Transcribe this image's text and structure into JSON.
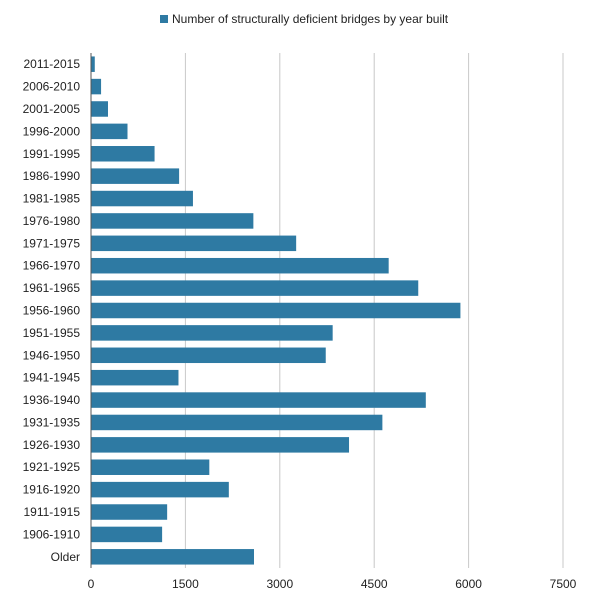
{
  "chart_data": {
    "type": "bar",
    "orientation": "horizontal",
    "categories": [
      "2011-2015",
      "2006-2010",
      "2001-2005",
      "1996-2000",
      "1991-1995",
      "1986-1990",
      "1981-1985",
      "1976-1980",
      "1971-1975",
      "1966-1970",
      "1961-1965",
      "1956-1960",
      "1951-1955",
      "1946-1950",
      "1941-1945",
      "1936-1940",
      "1931-1935",
      "1926-1930",
      "1921-1925",
      "1916-1920",
      "1911-1915",
      "1906-1910",
      "Older"
    ],
    "series": [
      {
        "name": "Number of structurally deficient bridges by year built",
        "color": "#2e7aa3",
        "values": [
          60,
          160,
          270,
          580,
          1010,
          1400,
          1620,
          2580,
          3260,
          4730,
          5200,
          5870,
          3840,
          3730,
          1390,
          5320,
          4630,
          4100,
          1880,
          2190,
          1210,
          1130,
          2590
        ]
      }
    ],
    "xticks": [
      0,
      1500,
      3000,
      4500,
      6000,
      7500
    ],
    "xlim": [
      0,
      7500
    ],
    "grid": true,
    "legend_position": "top-center"
  }
}
